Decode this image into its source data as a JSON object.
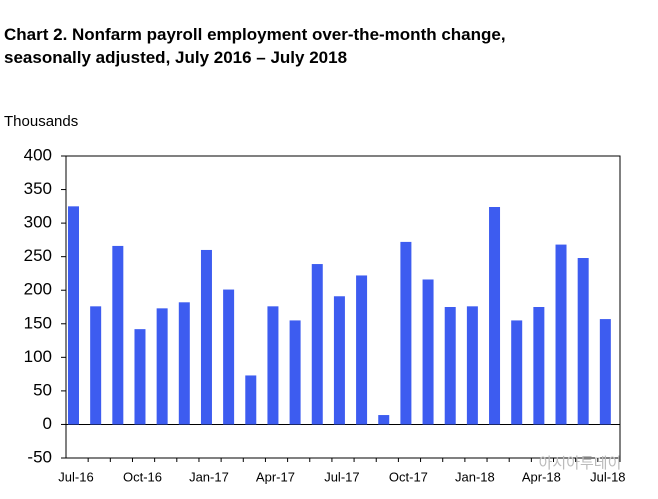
{
  "chart_data": {
    "type": "bar",
    "title": [
      "Chart 2. Nonfarm payroll employment over-the-month change,",
      "seasonally adjusted, July 2016 – July 2018"
    ],
    "y_label": "Thousands",
    "watermark": "아시아투데이",
    "categories": [
      "Jul-16",
      null,
      null,
      "Oct-16",
      null,
      null,
      "Jan-17",
      null,
      null,
      "Apr-17",
      null,
      null,
      "Jul-17",
      null,
      null,
      "Oct-17",
      null,
      null,
      "Jan-18",
      null,
      null,
      "Apr-18",
      null,
      null,
      "Jul-18"
    ],
    "values": [
      325,
      176,
      266,
      142,
      173,
      182,
      260,
      201,
      73,
      176,
      155,
      239,
      191,
      222,
      14,
      272,
      216,
      175,
      176,
      324,
      155,
      175,
      268,
      248,
      157
    ],
    "color": "#3d5cf0",
    "ylim": [
      -50,
      400
    ],
    "yticks": [
      -50,
      0,
      50,
      100,
      150,
      200,
      250,
      300,
      350,
      400
    ],
    "grid": false
  }
}
